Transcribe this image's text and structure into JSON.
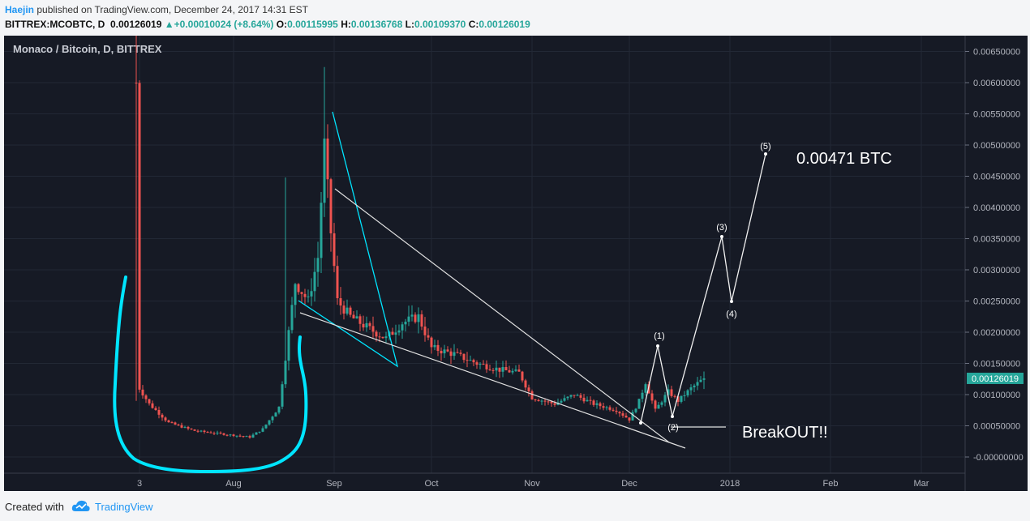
{
  "header": {
    "author": "Haejin",
    "published_text": " published on TradingView.com, December 24, 2017 14:31 EST",
    "symbol": "BITTREX:MCOBTC, D",
    "last": "0.00126019",
    "change": "+0.00010024 (+8.64%)",
    "o_label": "O:",
    "o_value": "0.00115995",
    "h_label": "H:",
    "h_value": "0.00136768",
    "l_label": "L:",
    "l_value": "0.00109370",
    "c_label": "C:",
    "c_value": "0.00126019"
  },
  "footer": {
    "created_with": "Created with",
    "brand": "TradingView"
  },
  "colors": {
    "background": "#161a25",
    "up": "#26a69a",
    "down": "#ef5350",
    "annotation_cyan": "#00e5ff",
    "trendline": "#e0e0e0",
    "price_tag": "#26a69a"
  },
  "chart_data": {
    "type": "candlestick",
    "title": "Monaco / Bitcoin, D, BITTREX",
    "x_ticks": [
      "3",
      "Aug",
      "Sep",
      "Oct",
      "Nov",
      "Dec",
      "2018",
      "Feb",
      "Mar"
    ],
    "y_ticks": [
      "0.00650000",
      "0.00600000",
      "0.00550000",
      "0.00500000",
      "0.00450000",
      "0.00400000",
      "0.00350000",
      "0.00300000",
      "0.00250000",
      "0.00200000",
      "0.00150000",
      "0.00100000",
      "0.00050000",
      "-0.00000000"
    ],
    "ylim": [
      -0.0003,
      0.0069
    ],
    "last_price_label": "0.00126019",
    "last_price": 0.00126019,
    "annotations": {
      "target": "0.00471 BTC",
      "breakout": "BreakOUT!!",
      "waves": [
        {
          "label": "(1)",
          "date": "2017-12-06",
          "price": 0.00176
        },
        {
          "label": "(2)",
          "date": "2017-12-10",
          "price": 0.00065
        },
        {
          "label": "(3)",
          "date": "2017-12-25",
          "price": 0.00352
        },
        {
          "label": "(4)",
          "date": "2017-12-27",
          "price": 0.00245
        },
        {
          "label": "(5)",
          "date": "2018-01-06",
          "price": 0.00483
        }
      ]
    }
  }
}
